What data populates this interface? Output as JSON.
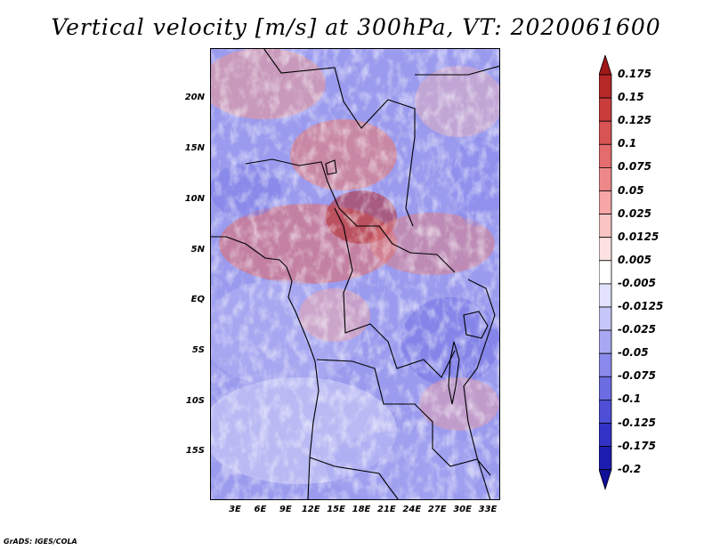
{
  "title": "Vertical velocity [m/s] at 300hPa, VT: 2020061600",
  "footer": "GrADS: IGES/COLA",
  "map": {
    "lat_labels": [
      "20N",
      "15N",
      "10N",
      "5N",
      "EQ",
      "5S",
      "10S",
      "15S"
    ],
    "lon_labels": [
      "3E",
      "6E",
      "9E",
      "12E",
      "15E",
      "18E",
      "21E",
      "24E",
      "27E",
      "30E",
      "33E"
    ]
  },
  "colorbar": {
    "labels": [
      "0.175",
      "0.15",
      "0.125",
      "0.1",
      "0.075",
      "0.05",
      "0.025",
      "0.0125",
      "0.005",
      "-0.005",
      "-0.0125",
      "-0.025",
      "-0.05",
      "-0.075",
      "-0.1",
      "-0.125",
      "-0.175",
      "-0.2"
    ],
    "colors": [
      "#a01818",
      "#b42828",
      "#c83c3c",
      "#d85454",
      "#e46c6c",
      "#ee8888",
      "#f6a6a6",
      "#fac4c4",
      "#fde2e2",
      "#ffffff",
      "#e2e2fc",
      "#c6c6f8",
      "#a8a8f2",
      "#8a8aec",
      "#6c6ce2",
      "#4e4ed6",
      "#3232c6",
      "#1c1cb0",
      "#10109a"
    ]
  }
}
